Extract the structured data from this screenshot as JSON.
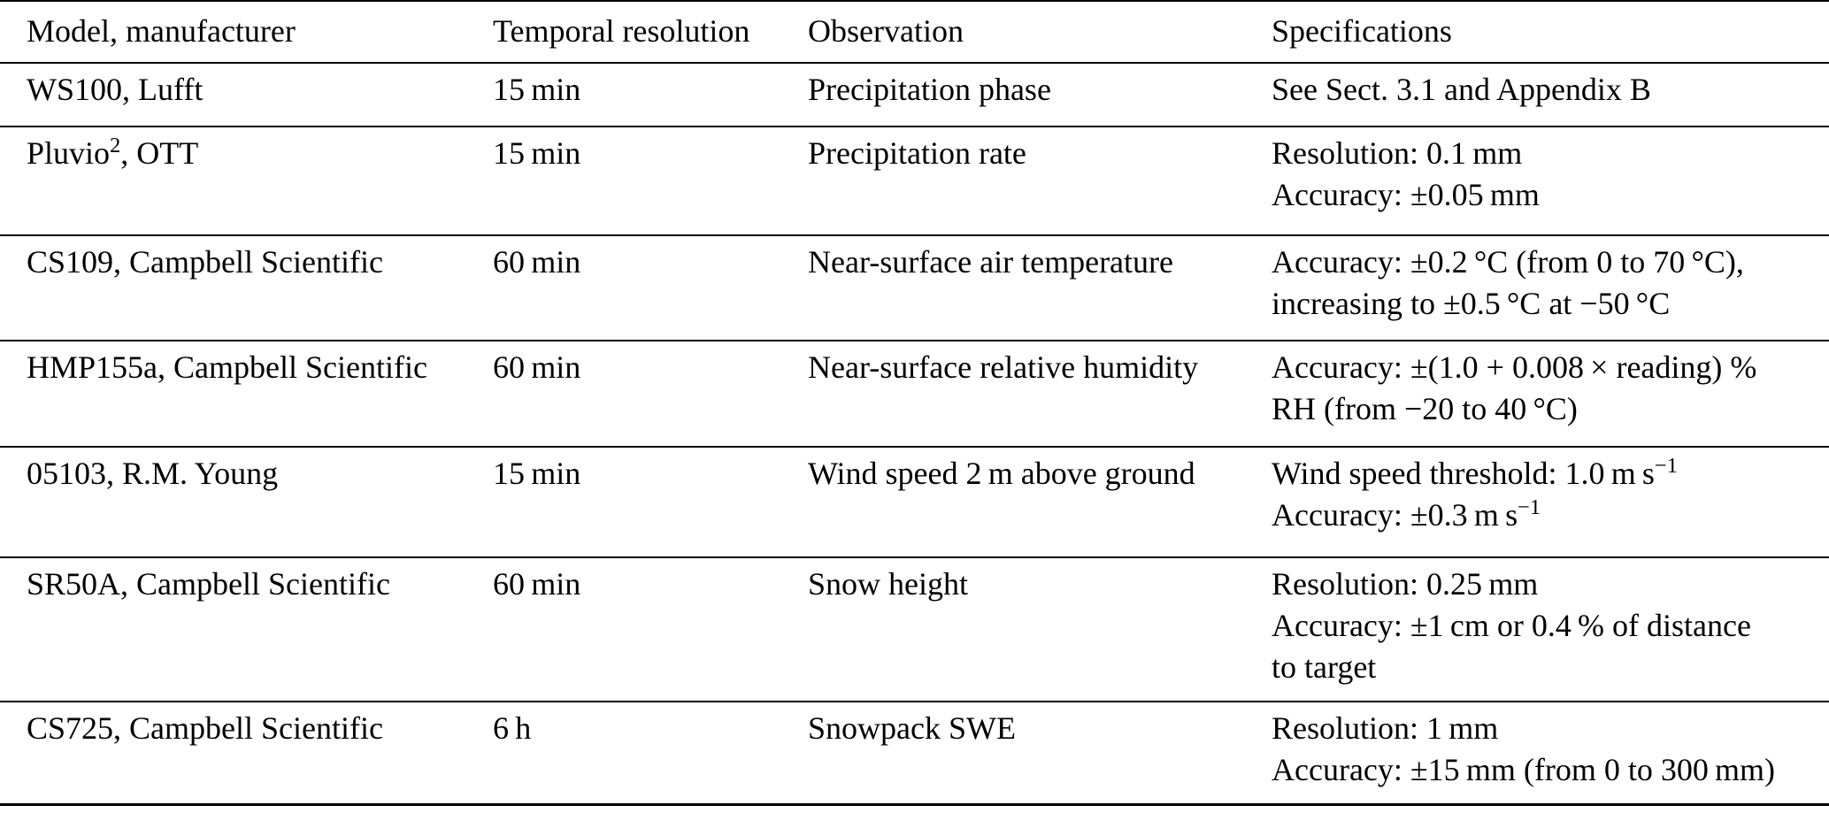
{
  "colors": {
    "background": "#ffffff",
    "text": "#000000",
    "rule": "#000000"
  },
  "table": {
    "columns": [
      "Model, manufacturer",
      "Temporal resolution",
      "Observation",
      "Specifications"
    ],
    "rows": [
      {
        "model": "WS100, Lufft",
        "temporal_resolution": "15 min",
        "observation": "Precipitation phase",
        "specifications": [
          "See Sect. 3.1 and Appendix B"
        ]
      },
      {
        "model": "Pluvio^{2}, OTT",
        "temporal_resolution": "15 min",
        "observation": "Precipitation rate",
        "specifications": [
          "Resolution: 0.1 mm",
          "Accuracy: ±0.05 mm"
        ]
      },
      {
        "model": "CS109, Campbell Scientific",
        "temporal_resolution": "60 min",
        "observation": "Near-surface air temperature",
        "specifications": [
          "Accuracy: ±0.2 °C (from 0 to 70 °C),",
          "increasing to ±0.5 °C at −50 °C"
        ]
      },
      {
        "model": "HMP155a, Campbell Scientific",
        "temporal_resolution": "60 min",
        "observation": "Near-surface relative humidity",
        "specifications": [
          "Accuracy: ±(1.0 + 0.008 × reading) %",
          "RH (from −20 to 40 °C)"
        ]
      },
      {
        "model": "05103, R.M. Young",
        "temporal_resolution": "15 min",
        "observation": "Wind speed 2 m above ground",
        "specifications": [
          "Wind speed threshold: 1.0 m s^{−1}",
          "Accuracy: ±0.3 m s^{−1}"
        ]
      },
      {
        "model": "SR50A, Campbell Scientific",
        "temporal_resolution": "60 min",
        "observation": "Snow height",
        "specifications": [
          "Resolution: 0.25 mm",
          "Accuracy: ±1 cm or 0.4 % of distance",
          "to target"
        ]
      },
      {
        "model": "CS725, Campbell Scientific",
        "temporal_resolution": "6 h",
        "observation": "Snowpack SWE",
        "specifications": [
          "Resolution: 1 mm",
          "Accuracy: ±15 mm (from 0 to 300 mm)"
        ]
      }
    ]
  }
}
